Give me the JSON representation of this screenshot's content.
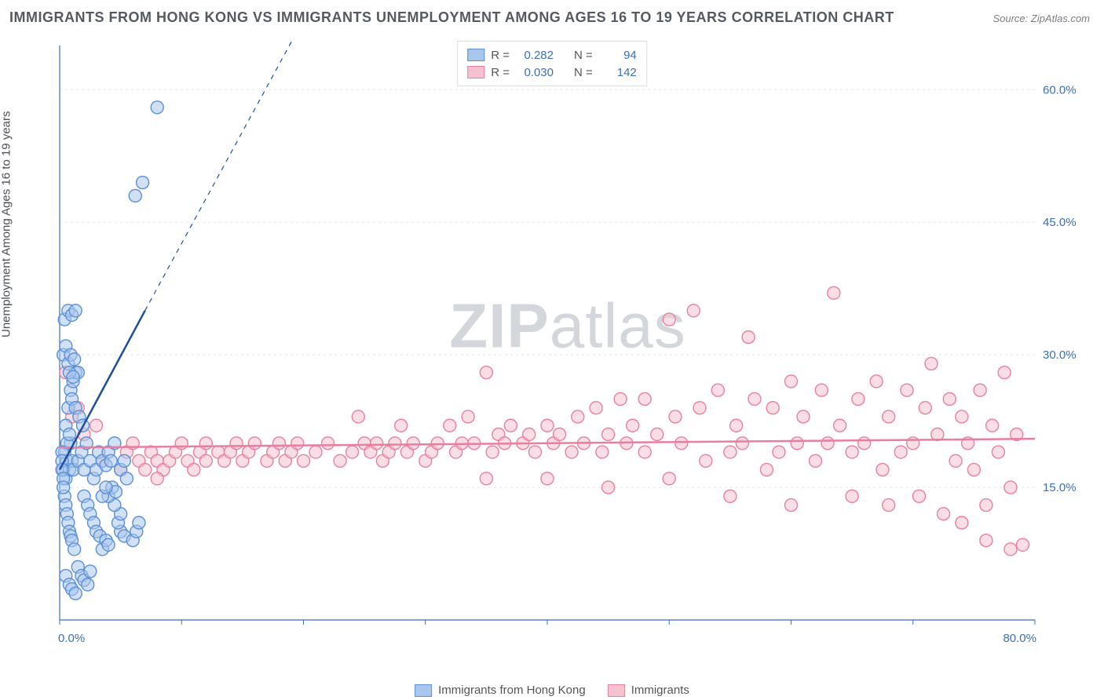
{
  "title": "IMMIGRANTS FROM HONG KONG VS IMMIGRANTS UNEMPLOYMENT AMONG AGES 16 TO 19 YEARS CORRELATION CHART",
  "source": "Source: ZipAtlas.com",
  "watermark_zip": "ZIP",
  "watermark_atlas": "atlas",
  "ylabel": "Unemployment Among Ages 16 to 19 years",
  "chart": {
    "type": "scatter",
    "xlim": [
      0,
      80
    ],
    "ylim": [
      0,
      65
    ],
    "x_tick_min_label": "0.0%",
    "x_tick_max_label": "80.0%",
    "x_minor_ticks": [
      0,
      10,
      20,
      30,
      40,
      50,
      60,
      70,
      80
    ],
    "y_grid_values": [
      15,
      30,
      45,
      60
    ],
    "y_grid_labels": [
      "15.0%",
      "30.0%",
      "45.0%",
      "60.0%"
    ],
    "grid_color": "#dfe4ea",
    "axis_color": "#3b6fb6",
    "tick_label_color": "#3b6fb6",
    "background_color": "#ffffff",
    "marker_radius": 8,
    "marker_opacity": 0.55,
    "series": [
      {
        "name": "Immigrants from Hong Kong",
        "color_fill": "#a9c6ec",
        "color_stroke": "#5b8fd6",
        "r": 0.282,
        "n": 94,
        "trend": {
          "x1": 0,
          "y1": 17,
          "x2": 7,
          "y2": 35,
          "dash_x2": 22,
          "dash_y2": 73
        },
        "points": [
          [
            0.3,
            17
          ],
          [
            0.4,
            19
          ],
          [
            0.5,
            16
          ],
          [
            0.6,
            18
          ],
          [
            0.8,
            17
          ],
          [
            0.9,
            20
          ],
          [
            1.0,
            18
          ],
          [
            1.1,
            17
          ],
          [
            0.4,
            14
          ],
          [
            0.5,
            13
          ],
          [
            0.6,
            12
          ],
          [
            0.7,
            11
          ],
          [
            0.8,
            10
          ],
          [
            0.9,
            9.5
          ],
          [
            1.0,
            9
          ],
          [
            1.2,
            8
          ],
          [
            0.5,
            22
          ],
          [
            0.7,
            24
          ],
          [
            0.9,
            26
          ],
          [
            1.1,
            27
          ],
          [
            1.3,
            28
          ],
          [
            0.6,
            20
          ],
          [
            0.8,
            21
          ],
          [
            1.5,
            18
          ],
          [
            1.8,
            19
          ],
          [
            2.0,
            17
          ],
          [
            2.2,
            20
          ],
          [
            2.5,
            18
          ],
          [
            2.8,
            16
          ],
          [
            3.0,
            17
          ],
          [
            0.3,
            30
          ],
          [
            0.5,
            31
          ],
          [
            0.7,
            29
          ],
          [
            0.9,
            30
          ],
          [
            1.2,
            29.5
          ],
          [
            1.5,
            28
          ],
          [
            0.4,
            34
          ],
          [
            0.7,
            35
          ],
          [
            1.0,
            34.5
          ],
          [
            1.3,
            35
          ],
          [
            3.2,
            19
          ],
          [
            3.5,
            18
          ],
          [
            3.8,
            17.5
          ],
          [
            4.0,
            19
          ],
          [
            4.2,
            18
          ],
          [
            4.5,
            20
          ],
          [
            5.0,
            17
          ],
          [
            5.3,
            18
          ],
          [
            5.5,
            16
          ],
          [
            5.0,
            10
          ],
          [
            5.3,
            9.5
          ],
          [
            6.0,
            9
          ],
          [
            6.3,
            10
          ],
          [
            6.5,
            11
          ],
          [
            4.8,
            11
          ],
          [
            5.0,
            12
          ],
          [
            4.5,
            13
          ],
          [
            2.0,
            14
          ],
          [
            2.3,
            13
          ],
          [
            2.5,
            12
          ],
          [
            2.8,
            11
          ],
          [
            3.0,
            10
          ],
          [
            3.3,
            9.5
          ],
          [
            3.5,
            8
          ],
          [
            3.8,
            9
          ],
          [
            4.0,
            8.5
          ],
          [
            1.5,
            6
          ],
          [
            1.8,
            5
          ],
          [
            2.0,
            4.5
          ],
          [
            2.3,
            4
          ],
          [
            2.5,
            5.5
          ],
          [
            0.5,
            5
          ],
          [
            0.8,
            4
          ],
          [
            1.0,
            3.5
          ],
          [
            1.3,
            3
          ],
          [
            6.2,
            48
          ],
          [
            6.8,
            49.5
          ],
          [
            8.0,
            58
          ],
          [
            1.0,
            25
          ],
          [
            1.3,
            24
          ],
          [
            1.6,
            23
          ],
          [
            1.9,
            22
          ],
          [
            0.8,
            28
          ],
          [
            1.1,
            27.5
          ],
          [
            4.0,
            14
          ],
          [
            4.3,
            15
          ],
          [
            4.6,
            14.5
          ],
          [
            3.5,
            14
          ],
          [
            3.8,
            15
          ],
          [
            0.2,
            19
          ],
          [
            0.2,
            18
          ],
          [
            0.2,
            17
          ],
          [
            0.3,
            16
          ],
          [
            0.3,
            15
          ]
        ]
      },
      {
        "name": "Immigrants",
        "color_fill": "#f6c2cf",
        "color_stroke": "#e97fa0",
        "r": 0.03,
        "n": 142,
        "trend": {
          "x1": 0,
          "y1": 19.5,
          "x2": 80,
          "y2": 20.5
        },
        "points": [
          [
            0.5,
            28
          ],
          [
            1,
            23
          ],
          [
            1.5,
            24
          ],
          [
            2,
            21
          ],
          [
            3,
            22
          ],
          [
            3.5,
            18
          ],
          [
            5,
            17
          ],
          [
            5.5,
            19
          ],
          [
            6,
            20
          ],
          [
            6.5,
            18
          ],
          [
            7,
            17
          ],
          [
            7.5,
            19
          ],
          [
            8,
            18
          ],
          [
            8.5,
            17
          ],
          [
            8,
            16
          ],
          [
            9,
            18
          ],
          [
            9.5,
            19
          ],
          [
            10,
            20
          ],
          [
            10.5,
            18
          ],
          [
            11,
            17
          ],
          [
            11.5,
            19
          ],
          [
            12,
            20
          ],
          [
            12,
            18
          ],
          [
            13,
            19
          ],
          [
            13.5,
            18
          ],
          [
            14,
            19
          ],
          [
            14.5,
            20
          ],
          [
            15,
            18
          ],
          [
            15.5,
            19
          ],
          [
            16,
            20
          ],
          [
            17,
            18
          ],
          [
            17.5,
            19
          ],
          [
            18,
            20
          ],
          [
            18.5,
            18
          ],
          [
            19,
            19
          ],
          [
            19.5,
            20
          ],
          [
            20,
            18
          ],
          [
            21,
            19
          ],
          [
            22,
            20
          ],
          [
            23,
            18
          ],
          [
            24,
            19
          ],
          [
            24.5,
            23
          ],
          [
            25,
            20
          ],
          [
            25.5,
            19
          ],
          [
            26,
            20
          ],
          [
            26.5,
            18
          ],
          [
            27,
            19
          ],
          [
            27.5,
            20
          ],
          [
            28,
            22
          ],
          [
            28.5,
            19
          ],
          [
            29,
            20
          ],
          [
            30,
            18
          ],
          [
            30.5,
            19
          ],
          [
            31,
            20
          ],
          [
            32,
            22
          ],
          [
            32.5,
            19
          ],
          [
            33,
            20
          ],
          [
            33.5,
            23
          ],
          [
            34,
            20
          ],
          [
            35,
            28
          ],
          [
            35.5,
            19
          ],
          [
            36,
            21
          ],
          [
            36.5,
            20
          ],
          [
            37,
            22
          ],
          [
            38,
            20
          ],
          [
            38.5,
            21
          ],
          [
            39,
            19
          ],
          [
            40,
            22
          ],
          [
            40.5,
            20
          ],
          [
            41,
            21
          ],
          [
            42,
            19
          ],
          [
            42.5,
            23
          ],
          [
            43,
            20
          ],
          [
            44,
            24
          ],
          [
            44.5,
            19
          ],
          [
            45,
            21
          ],
          [
            46,
            25
          ],
          [
            46.5,
            20
          ],
          [
            47,
            22
          ],
          [
            48,
            19
          ],
          [
            48,
            25
          ],
          [
            49,
            21
          ],
          [
            50,
            34
          ],
          [
            50.5,
            23
          ],
          [
            51,
            20
          ],
          [
            52,
            35
          ],
          [
            52.5,
            24
          ],
          [
            53,
            18
          ],
          [
            54,
            26
          ],
          [
            55,
            19
          ],
          [
            55.5,
            22
          ],
          [
            56,
            20
          ],
          [
            56.5,
            32
          ],
          [
            57,
            25
          ],
          [
            58,
            17
          ],
          [
            58.5,
            24
          ],
          [
            59,
            19
          ],
          [
            60,
            27
          ],
          [
            60.5,
            20
          ],
          [
            61,
            23
          ],
          [
            62,
            18
          ],
          [
            62.5,
            26
          ],
          [
            63,
            20
          ],
          [
            63.5,
            37
          ],
          [
            64,
            22
          ],
          [
            65,
            19
          ],
          [
            65.5,
            25
          ],
          [
            66,
            20
          ],
          [
            67,
            27
          ],
          [
            67.5,
            17
          ],
          [
            68,
            23
          ],
          [
            69,
            19
          ],
          [
            69.5,
            26
          ],
          [
            70,
            20
          ],
          [
            70.5,
            14
          ],
          [
            71,
            24
          ],
          [
            71.5,
            29
          ],
          [
            72,
            21
          ],
          [
            72.5,
            12
          ],
          [
            73,
            25
          ],
          [
            73.5,
            18
          ],
          [
            74,
            23
          ],
          [
            74.5,
            20
          ],
          [
            75,
            17
          ],
          [
            75.5,
            26
          ],
          [
            76,
            13
          ],
          [
            76.5,
            22
          ],
          [
            77,
            19
          ],
          [
            77.5,
            28
          ],
          [
            78,
            8
          ],
          [
            78.5,
            21
          ],
          [
            79,
            8.5
          ],
          [
            74,
            11
          ],
          [
            76,
            9
          ],
          [
            78,
            15
          ],
          [
            65,
            14
          ],
          [
            68,
            13
          ],
          [
            60,
            13
          ],
          [
            55,
            14
          ],
          [
            50,
            16
          ],
          [
            45,
            15
          ],
          [
            40,
            16
          ],
          [
            35,
            16
          ]
        ]
      }
    ]
  },
  "legend_top_stat_r": "R =",
  "legend_top_stat_n": "N =",
  "legend_top_values": [
    {
      "r": "0.282",
      "n": "94"
    },
    {
      "r": "0.030",
      "n": "142"
    }
  ],
  "legend_top_value_color": "#3b6fb6"
}
